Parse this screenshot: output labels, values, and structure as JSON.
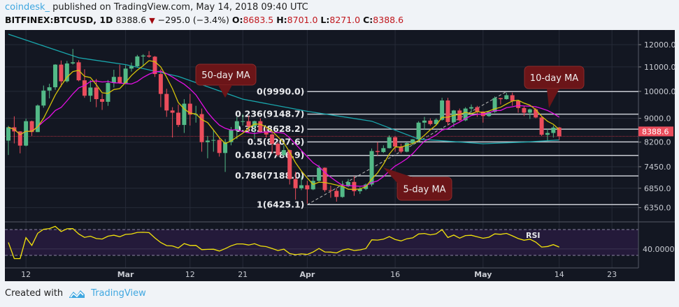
{
  "header": {
    "publisher": "coindesk_",
    "published_text": "published on TradingView.com, May 14, 2018 09:40 UTC",
    "symbol": "BITFINEX:BTCUSD, 1D",
    "last": "8388.6",
    "change": "−295.0 (−3.4%)",
    "o_label": "O:",
    "o": "8683.5",
    "h_label": "H:",
    "h": "8701.0",
    "l_label": "L:",
    "l": "8271.0",
    "c_label": "C:",
    "c": "8388.6",
    "direction_icon": "down-triangle-icon"
  },
  "footer": {
    "created_with": "Created with",
    "brand": "TradingView",
    "logo_icon": "tradingview-cloud-icon"
  },
  "colors": {
    "background": "#131722",
    "up": "#53b987",
    "down": "#eb4d5c",
    "ma5": "#d4c20a",
    "ma10": "#e40fe4",
    "ma50": "#19a7ad",
    "rsi": "#f2e20b",
    "rsi_band": "#241a3a",
    "fib": "#c8cbd2",
    "callout": "#6b1518",
    "last_price": "#eb4d5c",
    "brand": "#3fa7e0"
  },
  "chart_data": {
    "type": "candlestick",
    "price_scale": "log",
    "ylim": [
      6000,
      12800
    ],
    "price_ticks": [
      "12000.0",
      "11000.0",
      "10000.0",
      "9000.0",
      "8200.0",
      "7450.0",
      "6850.0",
      "6350.0"
    ],
    "price_tick_values": [
      12000,
      11000,
      10000,
      9000,
      8200,
      7450,
      6850,
      6350
    ],
    "x_ticks": [
      {
        "label": "12",
        "date": "2018-02-12"
      },
      {
        "label": "Mar",
        "date": "2018-03-01"
      },
      {
        "label": "12",
        "date": "2018-03-12"
      },
      {
        "label": "21",
        "date": "2018-03-21"
      },
      {
        "label": "Apr",
        "date": "2018-04-01"
      },
      {
        "label": "16",
        "date": "2018-04-16"
      },
      {
        "label": "May",
        "date": "2018-05-01"
      },
      {
        "label": "14",
        "date": "2018-05-14"
      },
      {
        "label": "23",
        "date": "2018-05-23"
      }
    ],
    "grid": true,
    "last_price_label": "8388.6",
    "last_price": 8388.6,
    "candles": [
      [
        "2018-02-09",
        8250,
        8740,
        7800,
        8690
      ],
      [
        "2018-02-10",
        8690,
        9070,
        8160,
        8550
      ],
      [
        "2018-02-11",
        8550,
        8560,
        7850,
        8090
      ],
      [
        "2018-02-12",
        8090,
        8990,
        8070,
        8900
      ],
      [
        "2018-02-13",
        8900,
        8920,
        8400,
        8530
      ],
      [
        "2018-02-14",
        8530,
        9500,
        8530,
        9460
      ],
      [
        "2018-02-15",
        9460,
        10230,
        9380,
        10030
      ],
      [
        "2018-02-16",
        10030,
        10300,
        9730,
        10160
      ],
      [
        "2018-02-17",
        10160,
        11120,
        10060,
        11100
      ],
      [
        "2018-02-18",
        11100,
        11280,
        10180,
        10400
      ],
      [
        "2018-02-19",
        10400,
        11260,
        10350,
        11150
      ],
      [
        "2018-02-20",
        11150,
        11800,
        11100,
        11200
      ],
      [
        "2018-02-21",
        11200,
        11290,
        10400,
        10440
      ],
      [
        "2018-02-22",
        10440,
        10900,
        9750,
        9830
      ],
      [
        "2018-02-23",
        9830,
        10450,
        9600,
        10150
      ],
      [
        "2018-02-24",
        10150,
        10500,
        9400,
        9700
      ],
      [
        "2018-02-25",
        9700,
        9900,
        9300,
        9600
      ],
      [
        "2018-02-26",
        9600,
        10450,
        9450,
        10330
      ],
      [
        "2018-02-27",
        10330,
        10880,
        10150,
        10580
      ],
      [
        "2018-02-28",
        10580,
        11100,
        10300,
        10320
      ],
      [
        "2018-03-01",
        10320,
        11070,
        10300,
        10930
      ],
      [
        "2018-03-02",
        10930,
        11190,
        10800,
        11030
      ],
      [
        "2018-03-03",
        11030,
        11530,
        11000,
        11460
      ],
      [
        "2018-03-04",
        11460,
        11560,
        11050,
        11500
      ],
      [
        "2018-03-05",
        11500,
        11700,
        11400,
        11450
      ],
      [
        "2018-03-06",
        11450,
        11480,
        10580,
        10700
      ],
      [
        "2018-03-07",
        10700,
        10900,
        9400,
        9900
      ],
      [
        "2018-03-08",
        9900,
        10100,
        9050,
        9280
      ],
      [
        "2018-03-09",
        9280,
        9400,
        8350,
        9200
      ],
      [
        "2018-03-10",
        9200,
        9500,
        8700,
        8770
      ],
      [
        "2018-03-11",
        8770,
        9700,
        8500,
        9530
      ],
      [
        "2018-03-12",
        9530,
        9900,
        8750,
        9130
      ],
      [
        "2018-03-13",
        9130,
        9450,
        8850,
        9150
      ],
      [
        "2018-03-14",
        9150,
        9350,
        7900,
        8200
      ],
      [
        "2018-03-15",
        8200,
        8400,
        7700,
        8250
      ],
      [
        "2018-03-16",
        8250,
        8600,
        7900,
        8270
      ],
      [
        "2018-03-17",
        8270,
        8350,
        7750,
        7860
      ],
      [
        "2018-03-18",
        7860,
        8300,
        7300,
        8200
      ],
      [
        "2018-03-19",
        8200,
        8700,
        8100,
        8600
      ],
      [
        "2018-03-20",
        8600,
        9050,
        8300,
        8900
      ],
      [
        "2018-03-21",
        8900,
        9150,
        8750,
        8900
      ],
      [
        "2018-03-22",
        8900,
        9100,
        8500,
        8720
      ],
      [
        "2018-03-23",
        8720,
        8920,
        8300,
        8900
      ],
      [
        "2018-03-24",
        8900,
        9000,
        8500,
        8550
      ],
      [
        "2018-03-25",
        8550,
        8700,
        8350,
        8450
      ],
      [
        "2018-03-26",
        8450,
        8500,
        7850,
        8150
      ],
      [
        "2018-03-27",
        8150,
        8200,
        7750,
        7800
      ],
      [
        "2018-03-28",
        7800,
        8100,
        7750,
        7950
      ],
      [
        "2018-03-29",
        7950,
        7970,
        6950,
        7100
      ],
      [
        "2018-03-30",
        7100,
        7300,
        6550,
        6850
      ],
      [
        "2018-03-31",
        6850,
        7200,
        6800,
        6930
      ],
      [
        "2018-04-01",
        6930,
        7050,
        6450,
        6820
      ],
      [
        "2018-04-02",
        6820,
        7150,
        6800,
        7050
      ],
      [
        "2018-04-03",
        7050,
        7500,
        7000,
        7420
      ],
      [
        "2018-04-04",
        7420,
        7430,
        6750,
        6800
      ],
      [
        "2018-04-05",
        6800,
        6920,
        6600,
        6780
      ],
      [
        "2018-04-06",
        6780,
        6850,
        6500,
        6620
      ],
      [
        "2018-04-07",
        6620,
        7050,
        6600,
        6900
      ],
      [
        "2018-04-08",
        6900,
        7100,
        6880,
        7020
      ],
      [
        "2018-04-09",
        7020,
        7180,
        6650,
        6770
      ],
      [
        "2018-04-10",
        6770,
        6880,
        6700,
        6830
      ],
      [
        "2018-04-11",
        6830,
        6980,
        6800,
        6950
      ],
      [
        "2018-04-12",
        6950,
        8000,
        6900,
        7920
      ],
      [
        "2018-04-13",
        7920,
        8200,
        7780,
        7890
      ],
      [
        "2018-04-14",
        7890,
        8100,
        7860,
        8010
      ],
      [
        "2018-04-15",
        8010,
        8420,
        8000,
        8360
      ],
      [
        "2018-04-16",
        8360,
        8400,
        7900,
        8060
      ],
      [
        "2018-04-17",
        8060,
        8150,
        7850,
        7900
      ],
      [
        "2018-04-18",
        7900,
        8200,
        7880,
        8170
      ],
      [
        "2018-04-19",
        8170,
        8300,
        8100,
        8290
      ],
      [
        "2018-04-20",
        8290,
        8900,
        8200,
        8850
      ],
      [
        "2018-04-21",
        8850,
        9050,
        8600,
        8920
      ],
      [
        "2018-04-22",
        8920,
        9000,
        8750,
        8800
      ],
      [
        "2018-04-23",
        8800,
        9000,
        8750,
        8950
      ],
      [
        "2018-04-24",
        8950,
        9750,
        8920,
        9650
      ],
      [
        "2018-04-25",
        9650,
        9750,
        8750,
        8870
      ],
      [
        "2018-04-26",
        8870,
        9300,
        8700,
        9280
      ],
      [
        "2018-04-27",
        9280,
        9350,
        8900,
        8930
      ],
      [
        "2018-04-28",
        8930,
        9400,
        8900,
        9350
      ],
      [
        "2018-04-29",
        9350,
        9500,
        9200,
        9400
      ],
      [
        "2018-04-30",
        9400,
        9450,
        9050,
        9240
      ],
      [
        "2018-05-01",
        9240,
        9250,
        8850,
        9080
      ],
      [
        "2018-05-02",
        9080,
        9250,
        9050,
        9230
      ],
      [
        "2018-05-03",
        9230,
        9800,
        9200,
        9740
      ],
      [
        "2018-05-04",
        9740,
        9750,
        9500,
        9700
      ],
      [
        "2018-05-05",
        9700,
        9950,
        9680,
        9850
      ],
      [
        "2018-05-06",
        9850,
        9950,
        9450,
        9630
      ],
      [
        "2018-05-07",
        9630,
        9650,
        9200,
        9370
      ],
      [
        "2018-05-08",
        9370,
        9450,
        9080,
        9200
      ],
      [
        "2018-05-09",
        9200,
        9350,
        8980,
        9320
      ],
      [
        "2018-05-10",
        9320,
        9370,
        9000,
        9030
      ],
      [
        "2018-05-11",
        9030,
        9050,
        8400,
        8440
      ],
      [
        "2018-05-12",
        8440,
        8650,
        8250,
        8500
      ],
      [
        "2018-05-13",
        8500,
        8750,
        8350,
        8680
      ],
      [
        "2018-05-14",
        8683.5,
        8701,
        8271,
        8388.6
      ]
    ],
    "ma50": [
      [
        "2018-02-09",
        12500
      ],
      [
        "2018-02-21",
        11400
      ],
      [
        "2018-03-01",
        11100
      ],
      [
        "2018-03-10",
        10600
      ],
      [
        "2018-03-21",
        9700
      ],
      [
        "2018-04-01",
        9250
      ],
      [
        "2018-04-12",
        8900
      ],
      [
        "2018-04-20",
        8300
      ],
      [
        "2018-05-01",
        8150
      ],
      [
        "2018-05-08",
        8200
      ],
      [
        "2018-05-14",
        8270
      ]
    ],
    "fibonacci": {
      "start": "2018-04-01",
      "end": "2018-05-05",
      "levels": [
        {
          "label": "0(9990.0)",
          "value": 9990.0
        },
        {
          "label": "0.236(9148.7)",
          "value": 9148.7
        },
        {
          "label": "0.382(8628.2)",
          "value": 8628.2
        },
        {
          "label": "0.5(8207.6)",
          "value": 8207.6
        },
        {
          "label": "0.618(7786.9)",
          "value": 7786.9
        },
        {
          "label": "0.786(7188.0)",
          "value": 7188.0
        },
        {
          "label": "1(6425.1)",
          "value": 6425.1
        }
      ]
    },
    "annotations": [
      {
        "text": "50-day MA",
        "target": "ma50"
      },
      {
        "text": "10-day MA",
        "target": "ma10"
      },
      {
        "text": "5-day MA",
        "target": "ma5"
      }
    ],
    "rsi": {
      "label": "RSI",
      "period": 14,
      "tick": "40.0000",
      "upper": 70,
      "lower": 30
    }
  }
}
